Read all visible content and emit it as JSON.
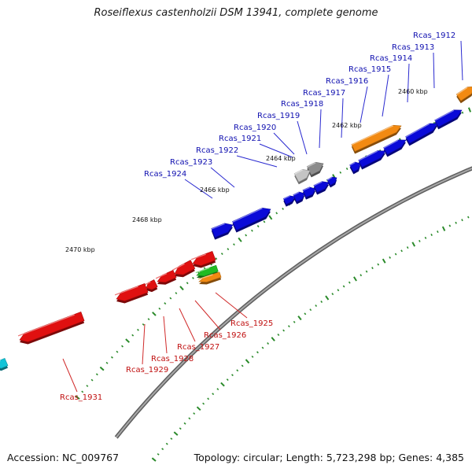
{
  "header": {
    "title": "Roseiflexus castenholzii DSM 13941, complete genome"
  },
  "footer": {
    "accession": "Accession: NC_009767",
    "summary": "Topology: circular; Length: 5,723,298 bp; Genes: 4,385"
  },
  "colors": {
    "forward_cds": "#0a0ad8",
    "reverse_cds": "#e01010",
    "orange_feature": "#f28a12",
    "gray_feature": "#8c8c8c",
    "green_feature": "#22bb22",
    "cyan_feature": "#11c4d8",
    "backbone": "#808080",
    "tick": "#2a8a2a",
    "forward_label": "#1010b0",
    "reverse_label": "#c01010"
  },
  "scale_labels": [
    "2460 kbp",
    "2462 kbp",
    "2464 kbp",
    "2466 kbp",
    "2468 kbp",
    "2470 kbp"
  ],
  "forward_labels": [
    "Rcas_1912",
    "Rcas_1913",
    "Rcas_1914",
    "Rcas_1915",
    "Rcas_1916",
    "Rcas_1917",
    "Rcas_1918",
    "Rcas_1919",
    "Rcas_1920",
    "Rcas_1921",
    "Rcas_1922",
    "Rcas_1923",
    "Rcas_1924"
  ],
  "reverse_labels": [
    "Rcas_1925",
    "Rcas_1926",
    "Rcas_1927",
    "Rcas_1928",
    "Rcas_1929",
    "Rcas_1931"
  ]
}
